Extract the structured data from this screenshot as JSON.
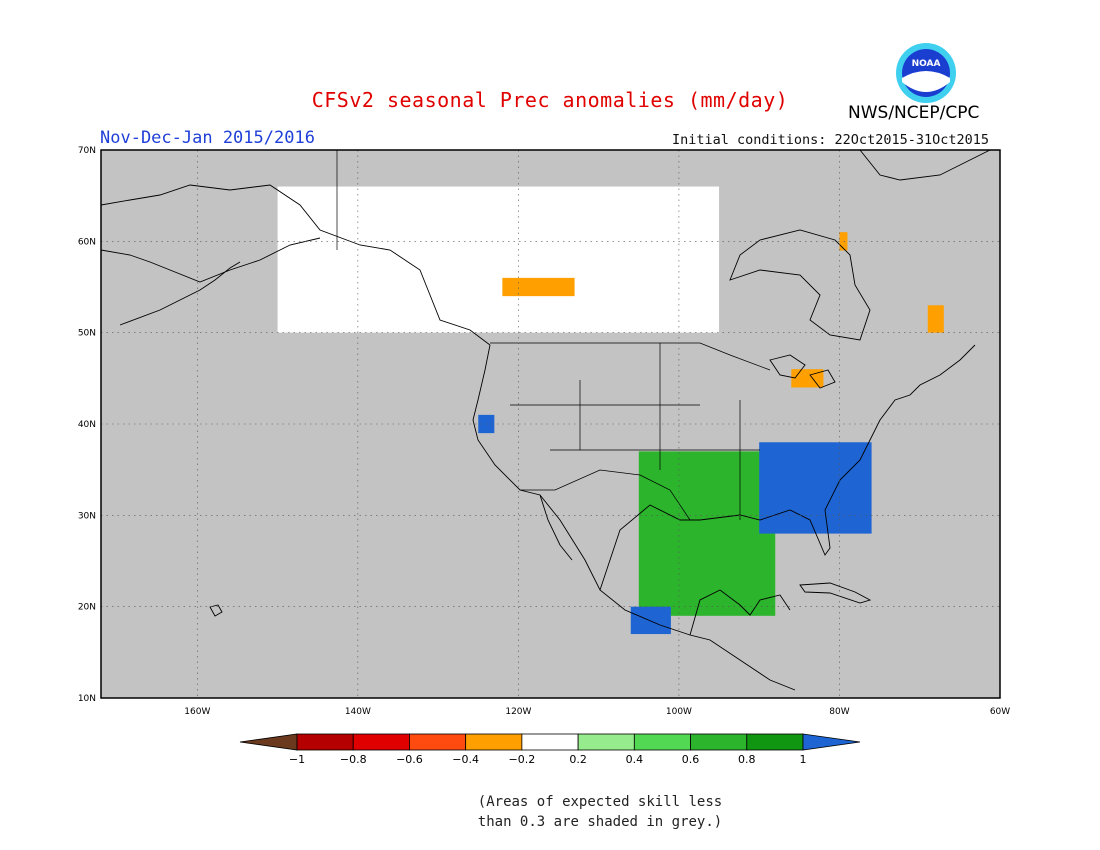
{
  "header": {
    "title": "CFSv2 seasonal Prec anomalies (mm/day)",
    "agency": "NWS/NCEP/CPC",
    "season": "Nov-Dec-Jan 2015/2016",
    "initial_conditions": "Initial conditions: 22Oct2015-31Oct2015",
    "logo_text": "NOAA"
  },
  "map": {
    "lon_range": [
      -172,
      -60
    ],
    "lat_range": [
      10,
      70
    ],
    "lat_ticks": [
      {
        "value": 70,
        "label": "70N"
      },
      {
        "value": 60,
        "label": "60N"
      },
      {
        "value": 50,
        "label": "50N"
      },
      {
        "value": 40,
        "label": "40N"
      },
      {
        "value": 30,
        "label": "30N"
      },
      {
        "value": 20,
        "label": "20N"
      },
      {
        "value": 10,
        "label": "10N"
      }
    ],
    "lon_ticks": [
      {
        "value": -160,
        "label": "160W"
      },
      {
        "value": -140,
        "label": "140W"
      },
      {
        "value": -120,
        "label": "120W"
      },
      {
        "value": -100,
        "label": "100W"
      },
      {
        "value": -80,
        "label": "80W"
      },
      {
        "value": -60,
        "label": "60W"
      }
    ],
    "background_color": "#c3c3c3"
  },
  "colorbar": {
    "labels": [
      "−1",
      "−0.8",
      "−0.6",
      "−0.4",
      "−0.2",
      "0.2",
      "0.4",
      "0.6",
      "0.8",
      "1"
    ],
    "colors": [
      "#6b3a1e",
      "#b40000",
      "#e00000",
      "#ff4a10",
      "#ffa000",
      "#ffffff",
      "#96eb8c",
      "#52d852",
      "#2cb42c",
      "#109610",
      "#1e64d2"
    ]
  },
  "anomaly_regions": [
    {
      "name": "west-canada-white",
      "color": "#ffffff",
      "value": "-0.2 to 0.2",
      "lon": [
        -150,
        -95
      ],
      "lat": [
        50,
        66
      ]
    },
    {
      "name": "bc-orange",
      "color": "#ffa000",
      "value": "-0.4 to -0.2",
      "lon": [
        -122,
        -113
      ],
      "lat": [
        54,
        56
      ]
    },
    {
      "name": "hudson-orange",
      "color": "#ffa000",
      "value": "-0.4 to -0.2",
      "lon": [
        -80,
        -79
      ],
      "lat": [
        59,
        61
      ]
    },
    {
      "name": "quebec-orange",
      "color": "#ffa000",
      "value": "-0.4 to -0.2",
      "lon": [
        -69,
        -67
      ],
      "lat": [
        50,
        53
      ]
    },
    {
      "name": "great-lakes-orange",
      "color": "#ffa000",
      "value": "-0.4 to -0.2",
      "lon": [
        -86,
        -82
      ],
      "lat": [
        44,
        46
      ]
    },
    {
      "name": "texas-gulf-green",
      "color": "#2cb42c",
      "value": "0.6 to 0.8",
      "lon": [
        -105,
        -88
      ],
      "lat": [
        19,
        37
      ]
    },
    {
      "name": "southeast-blue",
      "color": "#1e64d2",
      "value": "> 1",
      "lon": [
        -90,
        -76
      ],
      "lat": [
        28,
        38
      ]
    },
    {
      "name": "mexico-west-blue",
      "color": "#1e64d2",
      "value": "> 1",
      "lon": [
        -106,
        -101
      ],
      "lat": [
        17,
        20
      ]
    },
    {
      "name": "california-blue",
      "color": "#1e64d2",
      "value": "> 1",
      "lon": [
        -125,
        -123
      ],
      "lat": [
        39,
        41
      ]
    }
  ],
  "note": "(Areas of expected skill less\nthan 0.3 are shaded in grey.)"
}
